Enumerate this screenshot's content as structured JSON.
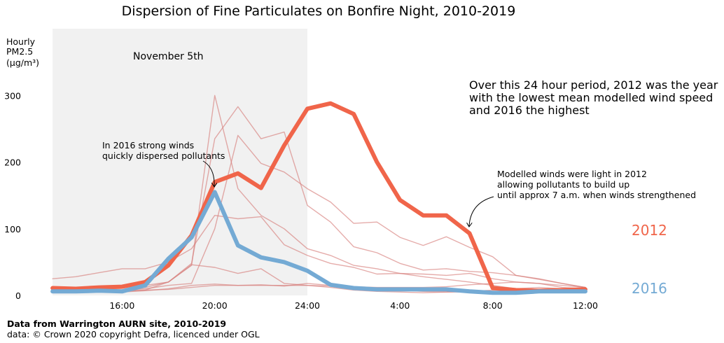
{
  "chart_data": {
    "type": "line",
    "title": "Dispersion of Fine Particulates on Bonfire Night, 2010-2019",
    "ylabel": [
      "Hourly",
      "PM2.5",
      "(µg/m³)"
    ],
    "xlabel": "",
    "x_hours": [
      13,
      14,
      15,
      16,
      17,
      18,
      19,
      20,
      21,
      22,
      23,
      24,
      25,
      26,
      27,
      28,
      29,
      30,
      31,
      32,
      33,
      34,
      35,
      36
    ],
    "x_ticks": [
      {
        "hour": 16,
        "label": "16:00"
      },
      {
        "hour": 20,
        "label": "20:00"
      },
      {
        "hour": 24,
        "label": "24:00"
      },
      {
        "hour": 28,
        "label": "4:00"
      },
      {
        "hour": 32,
        "label": "8:00"
      },
      {
        "hour": 36,
        "label": "12:00"
      }
    ],
    "y_ticks": [
      0,
      100,
      200,
      300
    ],
    "ylim": [
      0,
      400
    ],
    "xlim": [
      13,
      36
    ],
    "shaded_region": {
      "from_hour": 13,
      "to_hour": 24,
      "label": "November 5th"
    },
    "grid": false,
    "series": [
      {
        "values": [
          8,
          8,
          9,
          8,
          12,
          20,
          45,
          300,
          160,
          120,
          100,
          70,
          60,
          45,
          40,
          33,
          28,
          24,
          20,
          15,
          10,
          8,
          6,
          4
        ],
        "highlight": false
      },
      {
        "values": [
          10,
          11,
          12,
          12,
          15,
          20,
          48,
          235,
          283,
          235,
          245,
          135,
          110,
          73,
          64,
          48,
          38,
          40,
          36,
          34,
          30,
          25,
          18,
          12
        ],
        "highlight": false
      },
      {
        "values": [
          7,
          8,
          8,
          8,
          10,
          15,
          18,
          100,
          240,
          198,
          185,
          160,
          140,
          108,
          110,
          87,
          75,
          88,
          72,
          58,
          30,
          24,
          18,
          12
        ],
        "highlight": false
      },
      {
        "values": [
          25,
          28,
          34,
          40,
          40,
          50,
          70,
          120,
          115,
          118,
          76,
          60,
          48,
          42,
          32,
          33,
          32,
          30,
          33,
          25,
          20,
          18,
          12,
          10
        ],
        "highlight": false
      },
      {
        "values": [
          6,
          7,
          8,
          6,
          8,
          20,
          46,
          42,
          33,
          40,
          18,
          15,
          12,
          8,
          6,
          5,
          4,
          5,
          6,
          8,
          10,
          12,
          10,
          8
        ],
        "highlight": false
      },
      {
        "values": [
          5,
          5,
          6,
          5,
          7,
          10,
          15,
          17,
          15,
          15,
          15,
          15,
          14,
          13,
          12,
          12,
          12,
          13,
          16,
          18,
          20,
          18,
          15,
          12
        ],
        "highlight": false
      },
      {
        "values": [
          5,
          6,
          7,
          7,
          8,
          9,
          12,
          15,
          15,
          16,
          14,
          18,
          15,
          12,
          10,
          8,
          6,
          5,
          5,
          6,
          7,
          8,
          7,
          6
        ],
        "highlight": false
      },
      {
        "name": "2012",
        "values": [
          11,
          10,
          12,
          13,
          20,
          45,
          90,
          170,
          183,
          161,
          225,
          280,
          288,
          272,
          200,
          143,
          120,
          120,
          93,
          11,
          8,
          7,
          8,
          9
        ],
        "highlight": true,
        "color": "#f0654a"
      },
      {
        "name": "2016",
        "values": [
          6,
          6,
          7,
          6,
          15,
          55,
          87,
          155,
          75,
          57,
          50,
          37,
          16,
          11,
          9,
          9,
          9,
          9,
          6,
          4,
          4,
          6,
          6,
          6
        ],
        "highlight": true,
        "color": "#74aad4"
      }
    ],
    "background_line_color": "#d7807d",
    "shade_color": "#f1f1f1",
    "annotations": {
      "wind_note": [
        "Over this 24 hour period, 2012 was the year",
        "with the lowest mean modelled wind speed",
        "and 2016 the highest"
      ],
      "strong_winds": [
        "In 2016 strong winds",
        "quickly dispersed pollutants"
      ],
      "light_winds": [
        "Modelled winds were light in 2012",
        "allowing pollutants to build up",
        "until approx 7 a.m. when winds strengthened"
      ]
    }
  },
  "footer": {
    "source": "Data from Warrington AURN site, 2010-2019",
    "licence": "data: © Crown 2020 copyright Defra,  licenced under OGL"
  }
}
